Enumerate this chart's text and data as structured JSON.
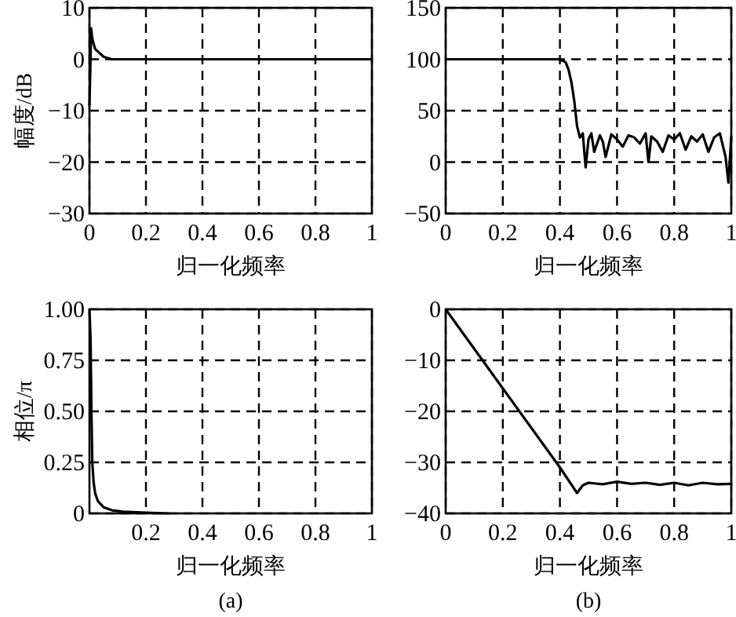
{
  "chart_data": [
    {
      "type": "line",
      "ylabel": "幅度/dB",
      "xlabel": "归一化频率",
      "xlim": [
        0,
        1
      ],
      "ylim": [
        -30,
        10
      ],
      "xticks": [
        0,
        0.2,
        0.4,
        0.6,
        0.8,
        1
      ],
      "yticks": [
        -30,
        -20,
        -10,
        0,
        10
      ],
      "grid": true,
      "marker": "none",
      "line_style": "solid",
      "series": [
        {
          "color": "#000000",
          "x": [
            0,
            0.003,
            0.006,
            0.01,
            0.015,
            0.02,
            0.03,
            0.04,
            0.05,
            0.06,
            0.08,
            0.1,
            0.3,
            0.6,
            1
          ],
          "values": [
            -9,
            -2,
            6,
            4,
            3,
            2,
            1.5,
            1,
            0.5,
            0.3,
            0,
            0,
            0,
            0,
            0
          ]
        }
      ]
    },
    {
      "type": "line",
      "xlabel": "归一化频率",
      "xlim": [
        0,
        1
      ],
      "ylim": [
        -50,
        150
      ],
      "xticks": [
        0,
        0.2,
        0.4,
        0.6,
        0.8,
        1
      ],
      "yticks": [
        -50,
        0,
        50,
        100,
        150
      ],
      "grid": true,
      "marker": "none",
      "line_style": "solid",
      "series": [
        {
          "color": "#000000",
          "x": [
            0,
            0.2,
            0.4,
            0.42,
            0.43,
            0.44,
            0.45,
            0.46,
            0.47,
            0.48,
            0.49,
            0.5,
            0.51,
            0.52,
            0.54,
            0.55,
            0.56,
            0.58,
            0.6,
            0.62,
            0.64,
            0.66,
            0.68,
            0.7,
            0.71,
            0.72,
            0.74,
            0.76,
            0.78,
            0.8,
            0.82,
            0.84,
            0.86,
            0.88,
            0.9,
            0.92,
            0.94,
            0.96,
            0.98,
            0.99,
            1
          ],
          "values": [
            100,
            100,
            100,
            97,
            90,
            78,
            60,
            35,
            24,
            28,
            -5,
            22,
            28,
            10,
            26,
            20,
            5,
            27,
            22,
            15,
            26,
            24,
            18,
            28,
            0,
            25,
            20,
            10,
            26,
            22,
            28,
            12,
            25,
            20,
            27,
            10,
            24,
            28,
            5,
            -20,
            25
          ]
        }
      ]
    },
    {
      "type": "line",
      "ylabel": "相位/π",
      "xlabel": "归一化频率",
      "xlim": [
        0,
        1
      ],
      "ylim": [
        0,
        1
      ],
      "xticks": [
        0.2,
        0.4,
        0.6,
        0.8,
        1
      ],
      "yticks": [
        {
          "value": 0,
          "label": "0"
        },
        {
          "value": 0.25,
          "label": "0.25"
        },
        {
          "value": 0.5,
          "label": "0.50"
        },
        {
          "value": 0.75,
          "label": "0.75"
        },
        {
          "value": 1,
          "label": "1.00"
        }
      ],
      "grid": true,
      "marker": "none",
      "line_style": "solid",
      "annotations": [
        "(a)"
      ],
      "series": [
        {
          "color": "#000000",
          "x": [
            0,
            0.004,
            0.007,
            0.01,
            0.015,
            0.02,
            0.03,
            0.05,
            0.08,
            0.12,
            0.2,
            0.28
          ],
          "values": [
            1,
            0.85,
            0.5,
            0.25,
            0.15,
            0.1,
            0.06,
            0.03,
            0.015,
            0.008,
            0.003,
            0
          ]
        }
      ]
    },
    {
      "type": "line",
      "xlabel": "归一化频率",
      "xlim": [
        0,
        1
      ],
      "ylim": [
        -40,
        0
      ],
      "xticks": [
        0,
        0.2,
        0.4,
        0.6,
        0.8,
        1
      ],
      "yticks": [
        -40,
        -30,
        -20,
        -10,
        0
      ],
      "grid": true,
      "marker": "none",
      "line_style": "solid",
      "annotations": [
        "(b)"
      ],
      "series": [
        {
          "color": "#000000",
          "x": [
            0,
            0.2,
            0.4,
            0.46,
            0.48,
            0.5,
            0.55,
            0.6,
            0.65,
            0.7,
            0.75,
            0.8,
            0.85,
            0.9,
            0.95,
            1
          ],
          "values": [
            0,
            -15.5,
            -31,
            -36,
            -34.5,
            -34,
            -34.3,
            -33.8,
            -34.2,
            -34,
            -34.4,
            -34,
            -34.5,
            -34,
            -34.3,
            -34.2
          ]
        }
      ]
    }
  ]
}
